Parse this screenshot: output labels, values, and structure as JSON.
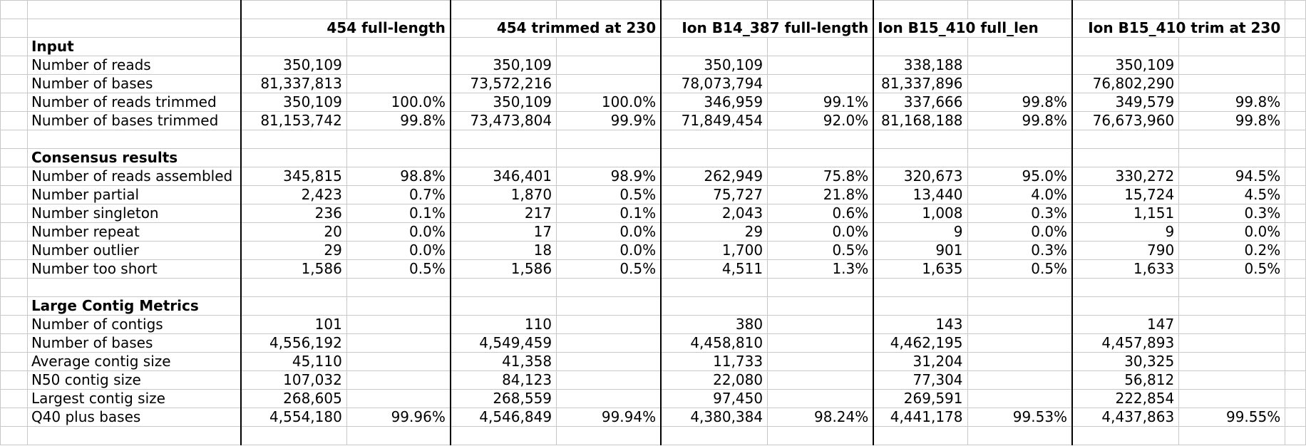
{
  "columns": [
    {
      "label": "454 full-length",
      "align": "right"
    },
    {
      "label": "454 trimmed at 230",
      "align": "right"
    },
    {
      "label": "Ion B14_387 full-length",
      "align": "right"
    },
    {
      "label": "Ion B15_410 full_len",
      "align": "left"
    },
    {
      "label": "Ion B15_410 trim at 230",
      "align": "right"
    }
  ],
  "rows": [
    {
      "type": "blank"
    },
    {
      "type": "header"
    },
    {
      "type": "section",
      "label": "Input"
    },
    {
      "type": "data",
      "label": "Number of reads",
      "values": [
        [
          "350,109",
          ""
        ],
        [
          "350,109",
          ""
        ],
        [
          "350,109",
          ""
        ],
        [
          "338,188",
          ""
        ],
        [
          "350,109",
          ""
        ]
      ]
    },
    {
      "type": "data",
      "label": "Number of bases",
      "values": [
        [
          "81,337,813",
          ""
        ],
        [
          "73,572,216",
          ""
        ],
        [
          "78,073,794",
          ""
        ],
        [
          "81,337,896",
          ""
        ],
        [
          "76,802,290",
          ""
        ]
      ]
    },
    {
      "type": "data",
      "label": "Number of reads trimmed",
      "values": [
        [
          "350,109",
          "100.0%"
        ],
        [
          "350,109",
          "100.0%"
        ],
        [
          "346,959",
          "99.1%"
        ],
        [
          "337,666",
          "99.8%"
        ],
        [
          "349,579",
          "99.8%"
        ]
      ]
    },
    {
      "type": "data",
      "label": "Number of bases trimmed",
      "values": [
        [
          "81,153,742",
          "99.8%"
        ],
        [
          "73,473,804",
          "99.9%"
        ],
        [
          "71,849,454",
          "92.0%"
        ],
        [
          "81,168,188",
          "99.8%"
        ],
        [
          "76,673,960",
          "99.8%"
        ]
      ]
    },
    {
      "type": "blank"
    },
    {
      "type": "section",
      "label": "Consensus results"
    },
    {
      "type": "data",
      "label": "Number of reads assembled",
      "values": [
        [
          "345,815",
          "98.8%"
        ],
        [
          "346,401",
          "98.9%"
        ],
        [
          "262,949",
          "75.8%"
        ],
        [
          "320,673",
          "95.0%"
        ],
        [
          "330,272",
          "94.5%"
        ]
      ]
    },
    {
      "type": "data",
      "label": "Number partial",
      "values": [
        [
          "2,423",
          "0.7%"
        ],
        [
          "1,870",
          "0.5%"
        ],
        [
          "75,727",
          "21.8%"
        ],
        [
          "13,440",
          "4.0%"
        ],
        [
          "15,724",
          "4.5%"
        ]
      ]
    },
    {
      "type": "data",
      "label": "Number singleton",
      "values": [
        [
          "236",
          "0.1%"
        ],
        [
          "217",
          "0.1%"
        ],
        [
          "2,043",
          "0.6%"
        ],
        [
          "1,008",
          "0.3%"
        ],
        [
          "1,151",
          "0.3%"
        ]
      ]
    },
    {
      "type": "data",
      "label": "Number repeat",
      "values": [
        [
          "20",
          "0.0%"
        ],
        [
          "17",
          "0.0%"
        ],
        [
          "29",
          "0.0%"
        ],
        [
          "9",
          "0.0%"
        ],
        [
          "9",
          "0.0%"
        ]
      ]
    },
    {
      "type": "data",
      "label": "Number outlier",
      "values": [
        [
          "29",
          "0.0%"
        ],
        [
          "18",
          "0.0%"
        ],
        [
          "1,700",
          "0.5%"
        ],
        [
          "901",
          "0.3%"
        ],
        [
          "790",
          "0.2%"
        ]
      ]
    },
    {
      "type": "data",
      "label": "Number too short",
      "values": [
        [
          "1,586",
          "0.5%"
        ],
        [
          "1,586",
          "0.5%"
        ],
        [
          "4,511",
          "1.3%"
        ],
        [
          "1,635",
          "0.5%"
        ],
        [
          "1,633",
          "0.5%"
        ]
      ]
    },
    {
      "type": "blank"
    },
    {
      "type": "section",
      "label": "Large Contig Metrics"
    },
    {
      "type": "data",
      "label": "Number of contigs",
      "values": [
        [
          "101",
          ""
        ],
        [
          "110",
          ""
        ],
        [
          "380",
          ""
        ],
        [
          "143",
          ""
        ],
        [
          "147",
          ""
        ]
      ]
    },
    {
      "type": "data",
      "label": "Number of bases",
      "values": [
        [
          "4,556,192",
          ""
        ],
        [
          "4,549,459",
          ""
        ],
        [
          "4,458,810",
          ""
        ],
        [
          "4,462,195",
          ""
        ],
        [
          "4,457,893",
          ""
        ]
      ]
    },
    {
      "type": "data",
      "label": "Average contig size",
      "values": [
        [
          "45,110",
          ""
        ],
        [
          "41,358",
          ""
        ],
        [
          "11,733",
          ""
        ],
        [
          "31,204",
          ""
        ],
        [
          "30,325",
          ""
        ]
      ]
    },
    {
      "type": "data",
      "label": "N50 contig size",
      "values": [
        [
          "107,032",
          ""
        ],
        [
          "84,123",
          ""
        ],
        [
          "22,080",
          ""
        ],
        [
          "77,304",
          ""
        ],
        [
          "56,812",
          ""
        ]
      ]
    },
    {
      "type": "data",
      "label": "Largest contig size",
      "values": [
        [
          "268,605",
          ""
        ],
        [
          "268,559",
          ""
        ],
        [
          "97,450",
          ""
        ],
        [
          "269,591",
          ""
        ],
        [
          "222,854",
          ""
        ]
      ]
    },
    {
      "type": "data",
      "label": "Q40 plus bases",
      "values": [
        [
          "4,554,180",
          "99.96%"
        ],
        [
          "4,546,849",
          "99.94%"
        ],
        [
          "4,380,384",
          "98.24%"
        ],
        [
          "4,441,178",
          "99.53%"
        ],
        [
          "4,437,863",
          "99.55%"
        ]
      ]
    },
    {
      "type": "blank"
    }
  ]
}
